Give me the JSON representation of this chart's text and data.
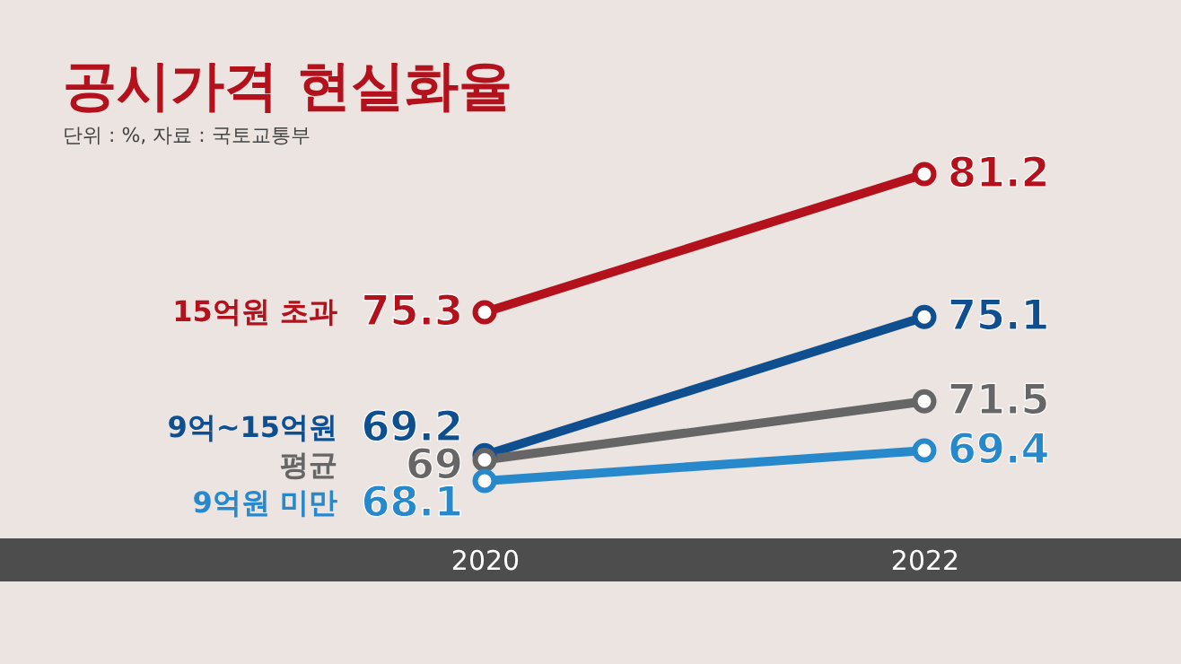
{
  "chart_data": {
    "type": "line",
    "title": "공시가격 현실화율",
    "subtitle": "단위 : %, 자료 : 국토교통부",
    "categories": [
      "2020",
      "2022"
    ],
    "series": [
      {
        "name": "15억원 초과",
        "color": "#b3121d",
        "values": [
          75.3,
          81.2
        ]
      },
      {
        "name": "9억~15억원",
        "color": "#0f4f8f",
        "values": [
          69.2,
          75.1
        ]
      },
      {
        "name": "평균",
        "color": "#666666",
        "values": [
          69,
          71.5
        ]
      },
      {
        "name": "9억원 미만",
        "color": "#2789cc",
        "values": [
          68.1,
          69.4
        ]
      }
    ],
    "data_labels": true,
    "legend": false,
    "grid": false,
    "marker": "circle",
    "line_style": "solid"
  }
}
